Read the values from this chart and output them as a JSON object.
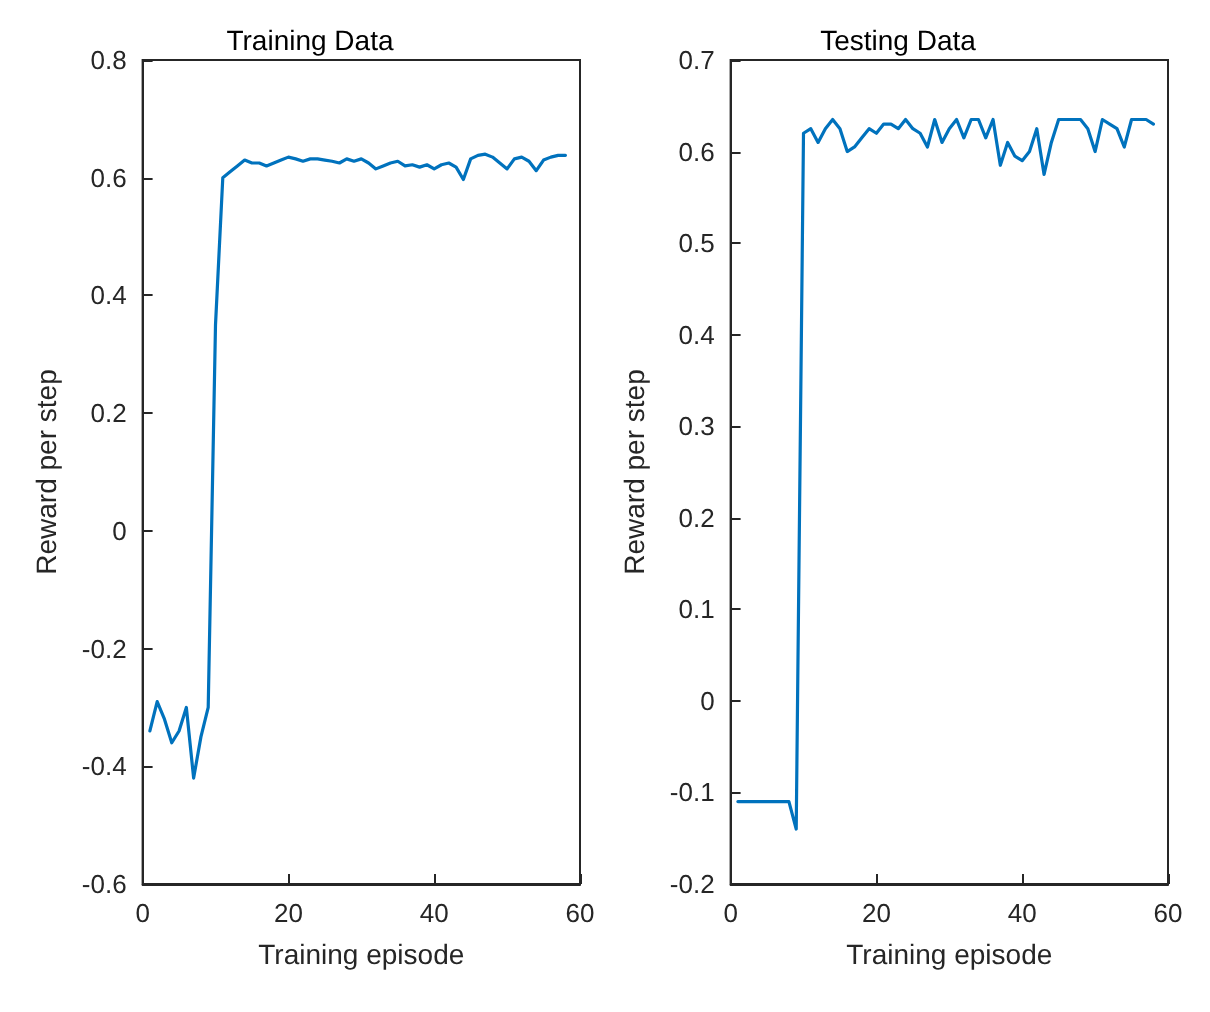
{
  "chart_data": [
    {
      "type": "line",
      "title": "Training Data",
      "xlabel": "Training episode",
      "ylabel": "Reward per step",
      "xlim": [
        0,
        60
      ],
      "xticks": [
        0,
        20,
        40,
        60
      ],
      "ylim": [
        -0.6,
        0.8
      ],
      "yticks": [
        -0.6,
        -0.4,
        -0.2,
        0,
        0.2,
        0.4,
        0.6,
        0.8
      ],
      "x": [
        1,
        2,
        3,
        4,
        5,
        6,
        7,
        8,
        9,
        10,
        11,
        12,
        13,
        14,
        15,
        16,
        17,
        18,
        19,
        20,
        21,
        22,
        23,
        24,
        25,
        26,
        27,
        28,
        29,
        30,
        31,
        32,
        33,
        34,
        35,
        36,
        37,
        38,
        39,
        40,
        41,
        42,
        43,
        44,
        45,
        46,
        47,
        48,
        49,
        50,
        51,
        52,
        53,
        54,
        55,
        56,
        57,
        58
      ],
      "series": [
        {
          "color": "#0072bd",
          "values": [
            -0.34,
            -0.29,
            -0.32,
            -0.36,
            -0.34,
            -0.3,
            -0.42,
            -0.35,
            -0.3,
            0.35,
            0.6,
            0.61,
            0.62,
            0.63,
            0.625,
            0.625,
            0.62,
            0.625,
            0.63,
            0.635,
            0.632,
            0.628,
            0.632,
            0.632,
            0.63,
            0.628,
            0.625,
            0.632,
            0.628,
            0.632,
            0.625,
            0.615,
            0.62,
            0.625,
            0.628,
            0.62,
            0.622,
            0.618,
            0.622,
            0.615,
            0.622,
            0.625,
            0.618,
            0.597,
            0.632,
            0.638,
            0.64,
            0.635,
            0.625,
            0.615,
            0.632,
            0.635,
            0.628,
            0.612,
            0.63,
            0.635,
            0.638,
            0.638
          ]
        }
      ]
    },
    {
      "type": "line",
      "title": "Testing Data",
      "xlabel": "Training episode",
      "ylabel": "Reward per step",
      "xlim": [
        0,
        60
      ],
      "xticks": [
        0,
        20,
        40,
        60
      ],
      "ylim": [
        -0.2,
        0.7
      ],
      "yticks": [
        -0.2,
        -0.1,
        0,
        0.1,
        0.2,
        0.3,
        0.4,
        0.5,
        0.6,
        0.7
      ],
      "x": [
        1,
        2,
        3,
        4,
        5,
        6,
        7,
        8,
        9,
        10,
        11,
        12,
        13,
        14,
        15,
        16,
        17,
        18,
        19,
        20,
        21,
        22,
        23,
        24,
        25,
        26,
        27,
        28,
        29,
        30,
        31,
        32,
        33,
        34,
        35,
        36,
        37,
        38,
        39,
        40,
        41,
        42,
        43,
        44,
        45,
        46,
        47,
        48,
        49,
        50,
        51,
        52,
        53,
        54,
        55,
        56,
        57,
        58
      ],
      "series": [
        {
          "color": "#0072bd",
          "values": [
            -0.11,
            -0.11,
            -0.11,
            -0.11,
            -0.11,
            -0.11,
            -0.11,
            -0.11,
            -0.14,
            0.62,
            0.625,
            0.61,
            0.625,
            0.635,
            0.625,
            0.6,
            0.605,
            0.615,
            0.625,
            0.62,
            0.63,
            0.63,
            0.625,
            0.635,
            0.625,
            0.62,
            0.605,
            0.635,
            0.61,
            0.625,
            0.635,
            0.615,
            0.635,
            0.635,
            0.615,
            0.635,
            0.585,
            0.61,
            0.595,
            0.59,
            0.6,
            0.625,
            0.575,
            0.61,
            0.635,
            0.635,
            0.635,
            0.635,
            0.625,
            0.6,
            0.635,
            0.63,
            0.625,
            0.605,
            0.635,
            0.635,
            0.635,
            0.63
          ]
        }
      ]
    }
  ]
}
